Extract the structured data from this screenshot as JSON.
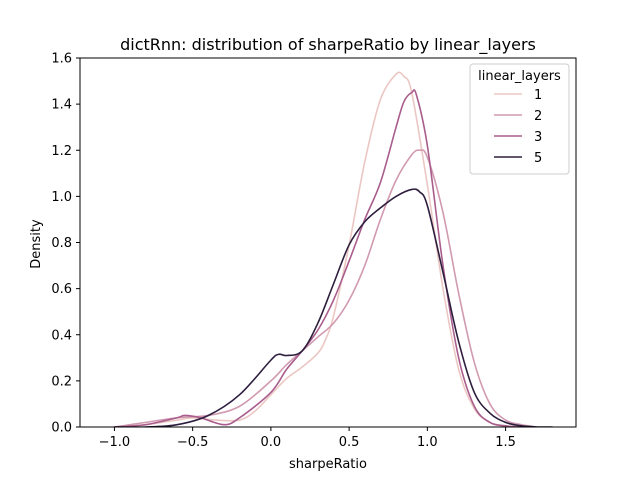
{
  "chart_data": {
    "type": "line",
    "title": "dictRnn: distribution of sharpeRatio by linear_layers",
    "xlabel": "sharpeRatio",
    "ylabel": "Density",
    "xlim": [
      -1.22,
      1.95
    ],
    "ylim": [
      0,
      1.6
    ],
    "xticks": [
      -1.0,
      -0.5,
      0.0,
      0.5,
      1.0,
      1.5
    ],
    "xtick_labels": [
      "−1.0",
      "−0.5",
      "0.0",
      "0.5",
      "1.0",
      "1.5"
    ],
    "yticks": [
      0.0,
      0.2,
      0.4,
      0.6,
      0.8,
      1.0,
      1.2,
      1.4,
      1.6
    ],
    "ytick_labels": [
      "0.0",
      "0.2",
      "0.4",
      "0.6",
      "0.8",
      "1.0",
      "1.2",
      "1.4",
      "1.6"
    ],
    "grid": false,
    "legend": {
      "title": "linear_layers",
      "placement": "top-right"
    },
    "series": [
      {
        "name": "1",
        "color": "#ebc7c4",
        "x": [
          -1.0,
          -0.8,
          -0.6,
          -0.5,
          -0.35,
          -0.2,
          -0.1,
          0.0,
          0.1,
          0.2,
          0.3,
          0.35,
          0.4,
          0.5,
          0.6,
          0.7,
          0.8,
          0.85,
          0.9,
          1.0,
          1.1,
          1.2,
          1.3,
          1.4,
          1.5,
          1.6
        ],
        "y": [
          0.0,
          0.01,
          0.03,
          0.04,
          0.03,
          0.03,
          0.07,
          0.14,
          0.21,
          0.26,
          0.32,
          0.38,
          0.48,
          0.79,
          1.15,
          1.42,
          1.53,
          1.52,
          1.45,
          1.05,
          0.6,
          0.25,
          0.08,
          0.02,
          0.005,
          0.0
        ]
      },
      {
        "name": "2",
        "color": "#d19ab0",
        "x": [
          -1.0,
          -0.8,
          -0.6,
          -0.4,
          -0.2,
          0.0,
          0.1,
          0.2,
          0.3,
          0.4,
          0.5,
          0.6,
          0.7,
          0.8,
          0.9,
          0.95,
          1.0,
          1.1,
          1.2,
          1.3,
          1.4,
          1.5,
          1.6,
          1.7
        ],
        "y": [
          0.0,
          0.02,
          0.04,
          0.05,
          0.09,
          0.2,
          0.27,
          0.33,
          0.39,
          0.45,
          0.55,
          0.7,
          0.9,
          1.07,
          1.18,
          1.2,
          1.17,
          0.93,
          0.58,
          0.28,
          0.1,
          0.03,
          0.01,
          0.0
        ]
      },
      {
        "name": "3",
        "color": "#a85d8c",
        "x": [
          -1.0,
          -0.8,
          -0.6,
          -0.55,
          -0.45,
          -0.3,
          -0.2,
          0.0,
          0.1,
          0.2,
          0.3,
          0.4,
          0.5,
          0.6,
          0.7,
          0.8,
          0.85,
          0.9,
          0.93,
          1.0,
          1.1,
          1.2,
          1.3,
          1.4,
          1.5,
          1.6
        ],
        "y": [
          0.0,
          0.01,
          0.04,
          0.05,
          0.04,
          0.01,
          0.04,
          0.15,
          0.25,
          0.33,
          0.42,
          0.55,
          0.72,
          0.9,
          1.06,
          1.3,
          1.41,
          1.45,
          1.44,
          1.22,
          0.7,
          0.3,
          0.09,
          0.02,
          0.005,
          0.0
        ]
      },
      {
        "name": "5",
        "color": "#2d1e3e",
        "x": [
          -1.0,
          -0.8,
          -0.6,
          -0.4,
          -0.2,
          0.0,
          0.05,
          0.1,
          0.2,
          0.3,
          0.4,
          0.5,
          0.6,
          0.7,
          0.8,
          0.9,
          0.95,
          1.0,
          1.1,
          1.2,
          1.3,
          1.4,
          1.5,
          1.6,
          1.7,
          1.8
        ],
        "y": [
          0.0,
          0.0,
          0.01,
          0.05,
          0.14,
          0.29,
          0.315,
          0.31,
          0.33,
          0.45,
          0.62,
          0.79,
          0.89,
          0.95,
          1.0,
          1.03,
          1.02,
          0.96,
          0.67,
          0.37,
          0.15,
          0.06,
          0.02,
          0.005,
          0.0,
          0.0
        ]
      }
    ]
  }
}
